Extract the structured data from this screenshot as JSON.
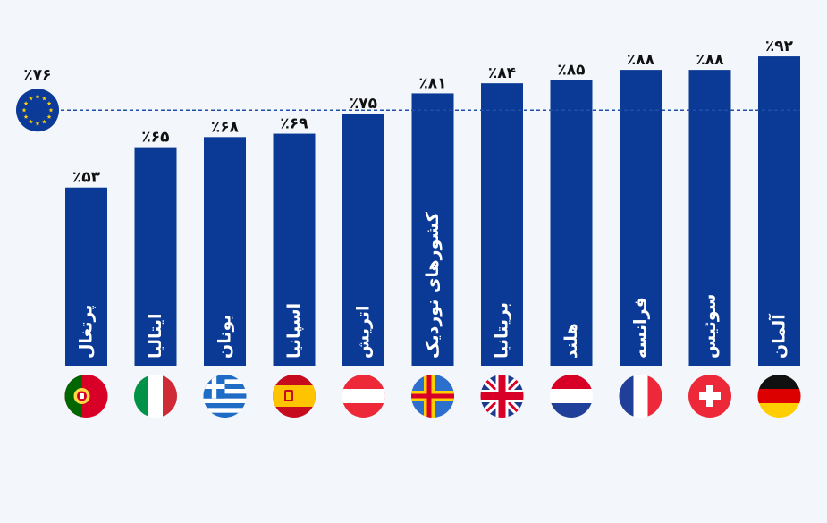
{
  "colors": {
    "bar": "#0a3a95",
    "background": "#f3f6fa",
    "value_text": "#111111",
    "bar_label_text": "#ffffff",
    "average_line": "#1f4fa8"
  },
  "chart_data": {
    "type": "bar",
    "title": "",
    "xlabel": "",
    "ylabel": "",
    "ylim": [
      0,
      100
    ],
    "categories": [
      "پرتغال",
      "ایتالیا",
      "یونان",
      "اسپانیا",
      "اتریش",
      "کشورهای نوردیک",
      "بریتانیا",
      "هلند",
      "فرانسه",
      "سوئیس",
      "آلمان"
    ],
    "values": [
      53,
      65,
      68,
      69,
      75,
      81,
      84,
      85,
      88,
      88,
      92
    ],
    "value_labels": [
      "٪۵۳",
      "٪۶۵",
      "٪۶۸",
      "٪۶۹",
      "٪۷۵",
      "٪۸۱",
      "٪۸۴",
      "٪۸۵",
      "٪۸۸",
      "٪۸۸",
      "٪۹۲"
    ],
    "flags": [
      "portugal-flag-icon",
      "italy-flag-icon",
      "greece-flag-icon",
      "spain-flag-icon",
      "austria-flag-icon",
      "nordic-flag-icon",
      "uk-flag-icon",
      "netherlands-flag-icon",
      "france-flag-icon",
      "switzerland-flag-icon",
      "germany-flag-icon"
    ],
    "reference_line": {
      "value": 76,
      "label": "٪۷۶",
      "icon": "eu-flag-icon"
    },
    "grid": false,
    "legend": "none"
  }
}
